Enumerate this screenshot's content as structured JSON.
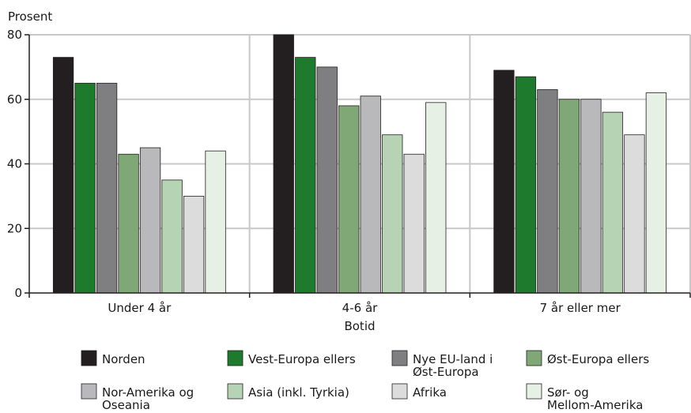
{
  "chart_data": {
    "type": "bar",
    "title": "",
    "ylabel": "Prosent",
    "xlabel": "Botid",
    "ylim": [
      0,
      80
    ],
    "yticks": [
      0,
      20,
      40,
      60,
      80
    ],
    "grid": true,
    "legend_position": "bottom",
    "categories": [
      "Under 4 år",
      "4-6 år",
      "7 år eller mer"
    ],
    "series": [
      {
        "name": "Norden",
        "color": "#231f20",
        "values": [
          73,
          80,
          69
        ]
      },
      {
        "name": "Vest-Europa ellers",
        "color": "#1e7a2c",
        "values": [
          65,
          73,
          67
        ]
      },
      {
        "name": "Nye EU-land i Øst-Europa",
        "color": "#7f7f81",
        "values": [
          65,
          70,
          63
        ]
      },
      {
        "name": "Øst-Europa ellers",
        "color": "#7fa876",
        "values": [
          43,
          58,
          60
        ]
      },
      {
        "name": "Nor-Amerika og Oseania",
        "color": "#b9b9bb",
        "values": [
          45,
          61,
          60
        ]
      },
      {
        "name": "Asia (inkl. Tyrkia)",
        "color": "#b6d3b3",
        "values": [
          35,
          49,
          56
        ]
      },
      {
        "name": "Afrika",
        "color": "#dcdcdd",
        "values": [
          30,
          43,
          49
        ]
      },
      {
        "name": "Sør- og Mellom-Amerika",
        "color": "#e6f0e4",
        "values": [
          44,
          59,
          62
        ]
      }
    ]
  }
}
